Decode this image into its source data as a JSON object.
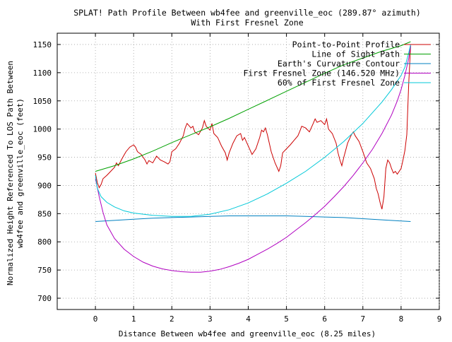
{
  "chart_data": {
    "type": "line",
    "title_line1": "SPLAT! Path Profile Between wb4fee and greenville_eoc (289.87° azimuth)",
    "title_line2": "With First Fresnel Zone",
    "xlabel": "Distance Between wb4fee and greenville_eoc (8.25 miles)",
    "ylabel_line1": "Normalized Height Referenced To LOS Path Between",
    "ylabel_line2": "wb4fee and greenville_eoc (feet)",
    "xlim": [
      -1,
      9
    ],
    "ylim": [
      680,
      1170
    ],
    "x_ticks": [
      0,
      1,
      2,
      3,
      4,
      5,
      6,
      7,
      8,
      9
    ],
    "y_ticks": [
      700,
      750,
      800,
      850,
      900,
      950,
      1000,
      1050,
      1100,
      1150
    ],
    "grid": true,
    "legend_position": "top-right",
    "series": [
      {
        "name": "Point-to-Point Profile",
        "color": "#cc0000",
        "points": [
          [
            0,
            922
          ],
          [
            0.05,
            905
          ],
          [
            0.1,
            896
          ],
          [
            0.15,
            902
          ],
          [
            0.2,
            912
          ],
          [
            0.3,
            918
          ],
          [
            0.4,
            925
          ],
          [
            0.5,
            932
          ],
          [
            0.55,
            940
          ],
          [
            0.6,
            935
          ],
          [
            0.7,
            948
          ],
          [
            0.8,
            960
          ],
          [
            0.9,
            968
          ],
          [
            1.0,
            972
          ],
          [
            1.05,
            968
          ],
          [
            1.1,
            960
          ],
          [
            1.2,
            955
          ],
          [
            1.3,
            945
          ],
          [
            1.35,
            938
          ],
          [
            1.4,
            944
          ],
          [
            1.5,
            940
          ],
          [
            1.6,
            952
          ],
          [
            1.7,
            945
          ],
          [
            1.8,
            942
          ],
          [
            1.9,
            938
          ],
          [
            1.95,
            942
          ],
          [
            2.0,
            960
          ],
          [
            2.1,
            965
          ],
          [
            2.2,
            975
          ],
          [
            2.3,
            988
          ],
          [
            2.35,
            1002
          ],
          [
            2.4,
            1010
          ],
          [
            2.5,
            1002
          ],
          [
            2.55,
            1005
          ],
          [
            2.6,
            995
          ],
          [
            2.7,
            990
          ],
          [
            2.8,
            1002
          ],
          [
            2.85,
            1015
          ],
          [
            2.9,
            1005
          ],
          [
            3.0,
            998
          ],
          [
            3.05,
            1010
          ],
          [
            3.1,
            992
          ],
          [
            3.2,
            985
          ],
          [
            3.3,
            970
          ],
          [
            3.4,
            958
          ],
          [
            3.45,
            945
          ],
          [
            3.5,
            958
          ],
          [
            3.6,
            975
          ],
          [
            3.7,
            988
          ],
          [
            3.8,
            992
          ],
          [
            3.85,
            980
          ],
          [
            3.9,
            985
          ],
          [
            4.0,
            970
          ],
          [
            4.1,
            955
          ],
          [
            4.2,
            965
          ],
          [
            4.3,
            985
          ],
          [
            4.35,
            998
          ],
          [
            4.4,
            995
          ],
          [
            4.45,
            1002
          ],
          [
            4.5,
            990
          ],
          [
            4.6,
            960
          ],
          [
            4.7,
            940
          ],
          [
            4.8,
            925
          ],
          [
            4.85,
            935
          ],
          [
            4.9,
            958
          ],
          [
            5.0,
            965
          ],
          [
            5.1,
            972
          ],
          [
            5.2,
            980
          ],
          [
            5.3,
            988
          ],
          [
            5.35,
            996
          ],
          [
            5.4,
            1005
          ],
          [
            5.5,
            1002
          ],
          [
            5.6,
            995
          ],
          [
            5.7,
            1010
          ],
          [
            5.75,
            1018
          ],
          [
            5.8,
            1012
          ],
          [
            5.9,
            1015
          ],
          [
            6.0,
            1008
          ],
          [
            6.05,
            1018
          ],
          [
            6.1,
            1000
          ],
          [
            6.2,
            992
          ],
          [
            6.3,
            975
          ],
          [
            6.35,
            958
          ],
          [
            6.4,
            945
          ],
          [
            6.45,
            935
          ],
          [
            6.5,
            950
          ],
          [
            6.6,
            975
          ],
          [
            6.7,
            990
          ],
          [
            6.75,
            995
          ],
          [
            6.8,
            988
          ],
          [
            6.9,
            978
          ],
          [
            7.0,
            960
          ],
          [
            7.1,
            940
          ],
          [
            7.2,
            930
          ],
          [
            7.3,
            912
          ],
          [
            7.35,
            895
          ],
          [
            7.4,
            885
          ],
          [
            7.45,
            870
          ],
          [
            7.5,
            858
          ],
          [
            7.55,
            880
          ],
          [
            7.6,
            930
          ],
          [
            7.65,
            945
          ],
          [
            7.7,
            940
          ],
          [
            7.75,
            930
          ],
          [
            7.8,
            922
          ],
          [
            7.85,
            925
          ],
          [
            7.9,
            920
          ],
          [
            8.0,
            930
          ],
          [
            8.05,
            945
          ],
          [
            8.1,
            962
          ],
          [
            8.15,
            990
          ],
          [
            8.2,
            1080
          ],
          [
            8.25,
            1148
          ]
        ]
      },
      {
        "name": "Line of Sight Path",
        "color": "#00a000",
        "points": [
          [
            0,
            925
          ],
          [
            0.5,
            935
          ],
          [
            1.0,
            947
          ],
          [
            1.5,
            961
          ],
          [
            2.0,
            976
          ],
          [
            2.5,
            990
          ],
          [
            3.0,
            1004
          ],
          [
            3.5,
            1019
          ],
          [
            4.0,
            1035
          ],
          [
            4.5,
            1051
          ],
          [
            5.0,
            1067
          ],
          [
            5.5,
            1083
          ],
          [
            6.0,
            1099
          ],
          [
            6.5,
            1114
          ],
          [
            7.0,
            1126
          ],
          [
            7.5,
            1138
          ],
          [
            8.0,
            1148
          ],
          [
            8.25,
            1155
          ]
        ]
      },
      {
        "name": "Earth's Curvature Contour",
        "color": "#0080c0",
        "points": [
          [
            0,
            836
          ],
          [
            0.5,
            838
          ],
          [
            1.0,
            840
          ],
          [
            1.5,
            842
          ],
          [
            2.0,
            843
          ],
          [
            2.5,
            844
          ],
          [
            3.0,
            845
          ],
          [
            3.5,
            846
          ],
          [
            4.0,
            846
          ],
          [
            4.5,
            846
          ],
          [
            5.0,
            846
          ],
          [
            5.5,
            845
          ],
          [
            6.0,
            844
          ],
          [
            6.5,
            843
          ],
          [
            7.0,
            841
          ],
          [
            7.5,
            839
          ],
          [
            8.0,
            837
          ],
          [
            8.25,
            836
          ]
        ]
      },
      {
        "name": "First Fresnel Zone (146.520 MHz)",
        "color": "#b000c0",
        "points": [
          [
            0,
            912
          ],
          [
            0.1,
            880
          ],
          [
            0.2,
            852
          ],
          [
            0.3,
            830
          ],
          [
            0.5,
            806
          ],
          [
            0.75,
            787
          ],
          [
            1.0,
            774
          ],
          [
            1.25,
            764
          ],
          [
            1.5,
            757
          ],
          [
            1.75,
            752
          ],
          [
            2.0,
            749
          ],
          [
            2.25,
            747
          ],
          [
            2.5,
            746
          ],
          [
            2.75,
            746
          ],
          [
            3.0,
            748
          ],
          [
            3.25,
            751
          ],
          [
            3.5,
            756
          ],
          [
            3.75,
            762
          ],
          [
            4.0,
            769
          ],
          [
            4.25,
            778
          ],
          [
            4.5,
            787
          ],
          [
            4.75,
            797
          ],
          [
            5.0,
            808
          ],
          [
            5.25,
            821
          ],
          [
            5.5,
            834
          ],
          [
            5.75,
            848
          ],
          [
            6.0,
            863
          ],
          [
            6.25,
            880
          ],
          [
            6.5,
            898
          ],
          [
            6.75,
            918
          ],
          [
            7.0,
            940
          ],
          [
            7.25,
            964
          ],
          [
            7.5,
            992
          ],
          [
            7.75,
            1025
          ],
          [
            7.9,
            1050
          ],
          [
            8.0,
            1070
          ],
          [
            8.1,
            1095
          ],
          [
            8.2,
            1125
          ],
          [
            8.25,
            1148
          ]
        ]
      },
      {
        "name": "60% of First Fresnel Zone",
        "color": "#00c8d8",
        "points": [
          [
            0,
            918
          ],
          [
            0.05,
            895
          ],
          [
            0.15,
            880
          ],
          [
            0.3,
            870
          ],
          [
            0.5,
            862
          ],
          [
            0.75,
            855
          ],
          [
            1.0,
            851
          ],
          [
            1.5,
            847
          ],
          [
            2.0,
            845
          ],
          [
            2.5,
            845
          ],
          [
            3.0,
            849
          ],
          [
            3.5,
            857
          ],
          [
            4.0,
            869
          ],
          [
            4.5,
            885
          ],
          [
            5.0,
            904
          ],
          [
            5.5,
            925
          ],
          [
            6.0,
            950
          ],
          [
            6.5,
            978
          ],
          [
            7.0,
            1010
          ],
          [
            7.5,
            1048
          ],
          [
            7.75,
            1070
          ],
          [
            8.0,
            1095
          ],
          [
            8.1,
            1110
          ],
          [
            8.2,
            1135
          ],
          [
            8.25,
            1150
          ]
        ]
      }
    ]
  }
}
